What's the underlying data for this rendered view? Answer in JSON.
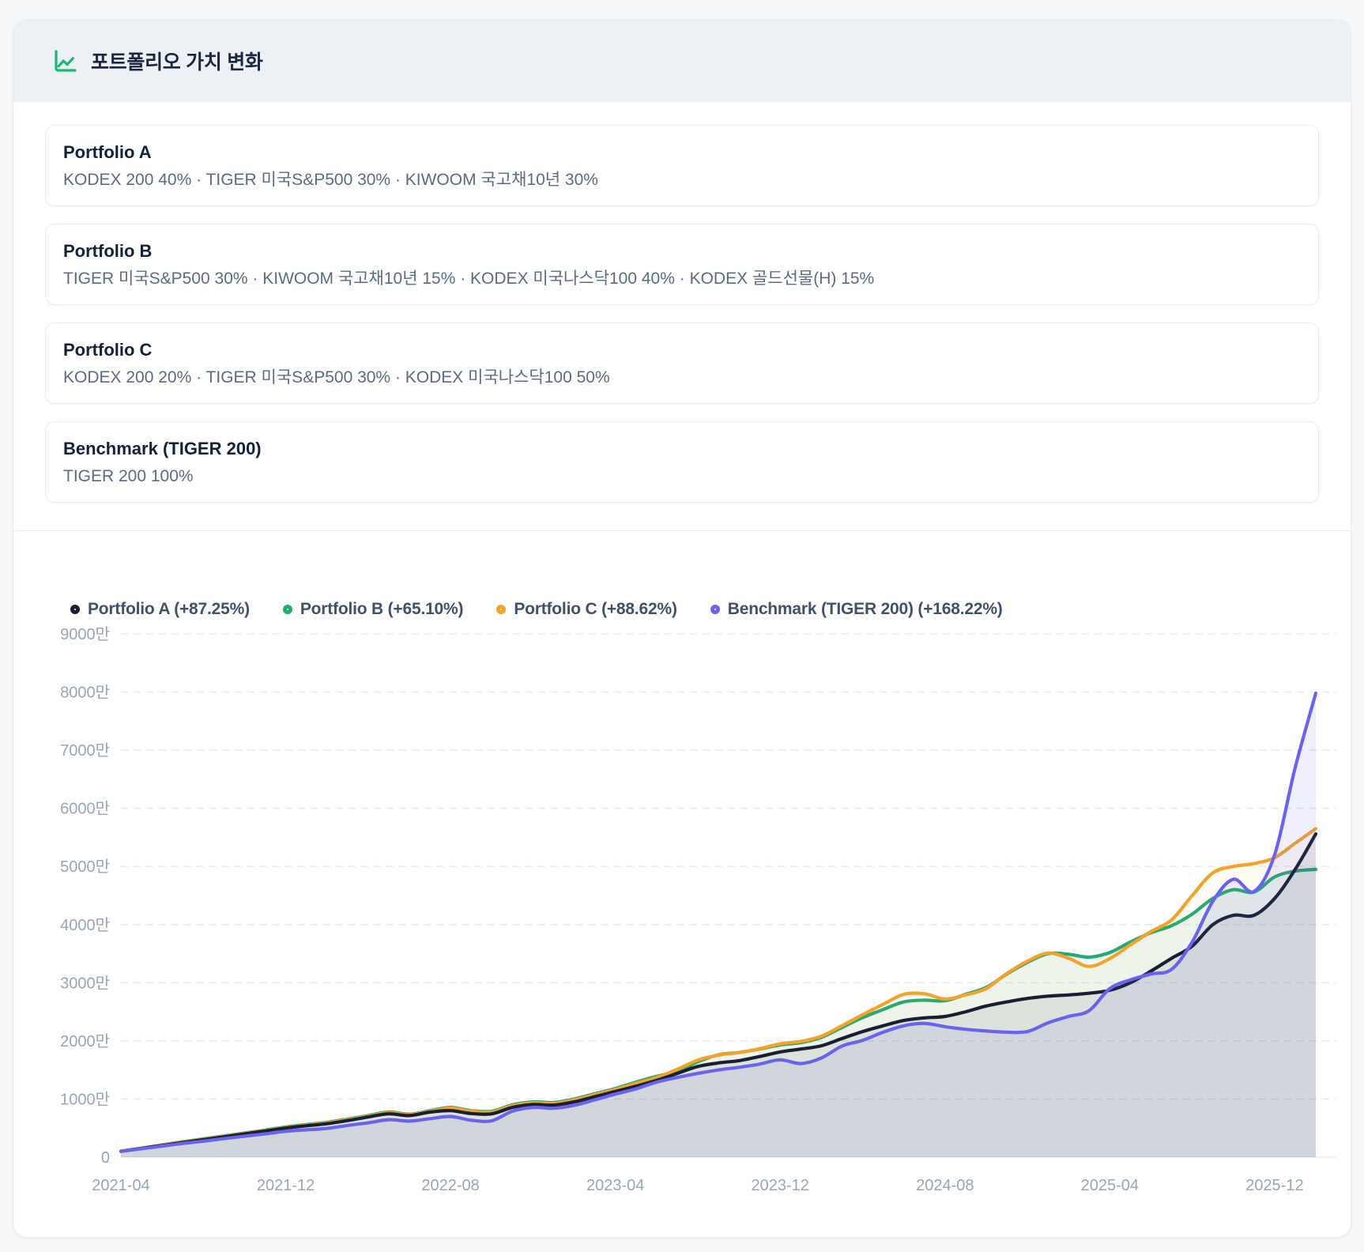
{
  "header": {
    "title": "포트폴리오 가치 변화",
    "icon": "line-chart-icon",
    "icon_color": "#17b877"
  },
  "portfolios": [
    {
      "name": "Portfolio A",
      "composition": "KODEX 200 40% · TIGER 미국S&P500 30% · KIWOOM 국고채10년 30%"
    },
    {
      "name": "Portfolio B",
      "composition": "TIGER 미국S&P500 30% · KIWOOM 국고채10년 15% · KODEX 미국나스닥100 40% · KODEX 골드선물(H) 15%"
    },
    {
      "name": "Portfolio C",
      "composition": "KODEX 200 20% · TIGER 미국S&P500 30% · KODEX 미국나스닥100 50%"
    },
    {
      "name": "Benchmark (TIGER 200)",
      "composition": "TIGER 200 100%"
    }
  ],
  "chart_data": {
    "type": "line",
    "unit": "만",
    "start_month": "2021-04",
    "end_month": "2026-02",
    "months_total": 59,
    "ylim": [
      0,
      9000
    ],
    "y_tick_values": [
      0,
      1000,
      2000,
      3000,
      4000,
      5000,
      6000,
      7000,
      8000,
      9000
    ],
    "y_tick_labels": [
      "0",
      "1000만",
      "2000만",
      "3000만",
      "4000만",
      "5000만",
      "6000만",
      "7000만",
      "8000만",
      "9000만"
    ],
    "x_tick_month_index": [
      0,
      8,
      16,
      24,
      32,
      40,
      48,
      56
    ],
    "x_tick_labels": [
      "2021-04",
      "2021-12",
      "2022-08",
      "2023-04",
      "2023-12",
      "2024-08",
      "2025-04",
      "2025-12"
    ],
    "grid": "dashed-horizontal",
    "legend_position": "top-left",
    "axis_label_color": "#9aa5b5",
    "grid_color": "#e7eaf0",
    "draw_order": [
      1,
      2,
      0,
      3
    ],
    "series": [
      {
        "name": "Portfolio A",
        "legend_label": "Portfolio A (+87.25%)",
        "return_pct": "+87.25%",
        "color": "#191f33",
        "fill": "rgba(25,31,51,0.08)",
        "values": [
          100,
          150,
          200,
          250,
          300,
          350,
          400,
          450,
          500,
          540,
          575,
          630,
          690,
          745,
          715,
          775,
          800,
          750,
          745,
          855,
          905,
          895,
          950,
          1040,
          1130,
          1220,
          1320,
          1440,
          1560,
          1620,
          1660,
          1730,
          1810,
          1860,
          1915,
          2040,
          2160,
          2260,
          2350,
          2395,
          2420,
          2500,
          2600,
          2670,
          2730,
          2770,
          2790,
          2820,
          2870,
          3000,
          3200,
          3420,
          3630,
          4000,
          4160,
          4160,
          4450,
          4950,
          5560
        ]
      },
      {
        "name": "Portfolio B",
        "legend_label": "Portfolio B (+65.10%)",
        "return_pct": "+65.10%",
        "color": "#22ab72",
        "fill": "rgba(34,171,114,0.07)",
        "values": [
          100,
          155,
          210,
          265,
          315,
          365,
          415,
          465,
          520,
          560,
          600,
          655,
          715,
          775,
          740,
          800,
          855,
          800,
          790,
          900,
          950,
          940,
          1000,
          1090,
          1180,
          1290,
          1390,
          1480,
          1640,
          1760,
          1800,
          1860,
          1930,
          1970,
          2060,
          2230,
          2400,
          2540,
          2670,
          2700,
          2690,
          2800,
          2920,
          3150,
          3350,
          3500,
          3490,
          3440,
          3520,
          3700,
          3860,
          3980,
          4180,
          4450,
          4600,
          4560,
          4820,
          4920,
          4950
        ]
      },
      {
        "name": "Portfolio C",
        "legend_label": "Portfolio C (+88.62%)",
        "return_pct": "+88.62%",
        "color": "#f3a32a",
        "fill": "rgba(243,163,42,0.05)",
        "values": [
          100,
          152,
          205,
          258,
          308,
          358,
          408,
          458,
          510,
          550,
          590,
          645,
          705,
          762,
          730,
          788,
          843,
          790,
          778,
          885,
          935,
          925,
          985,
          1075,
          1165,
          1270,
          1370,
          1510,
          1670,
          1755,
          1800,
          1865,
          1950,
          1990,
          2080,
          2260,
          2450,
          2630,
          2800,
          2810,
          2720,
          2790,
          2900,
          3160,
          3370,
          3510,
          3420,
          3280,
          3415,
          3650,
          3880,
          4080,
          4500,
          4890,
          5000,
          5050,
          5150,
          5400,
          5650
        ]
      },
      {
        "name": "Benchmark (TIGER 200)",
        "legend_label": "Benchmark (TIGER 200) (+168.22%)",
        "return_pct": "+168.22%",
        "color": "#6a63ef",
        "fill": "rgba(106,99,239,0.10)",
        "values": [
          100,
          145,
          190,
          235,
          275,
          318,
          360,
          400,
          445,
          470,
          495,
          545,
          590,
          645,
          620,
          662,
          700,
          635,
          625,
          790,
          855,
          840,
          890,
          985,
          1085,
          1175,
          1290,
          1370,
          1440,
          1500,
          1545,
          1600,
          1675,
          1610,
          1705,
          1910,
          2010,
          2150,
          2260,
          2300,
          2245,
          2200,
          2170,
          2150,
          2160,
          2310,
          2420,
          2520,
          2900,
          3050,
          3150,
          3230,
          3700,
          4400,
          4780,
          4570,
          5200,
          6700,
          7980
        ]
      }
    ]
  }
}
